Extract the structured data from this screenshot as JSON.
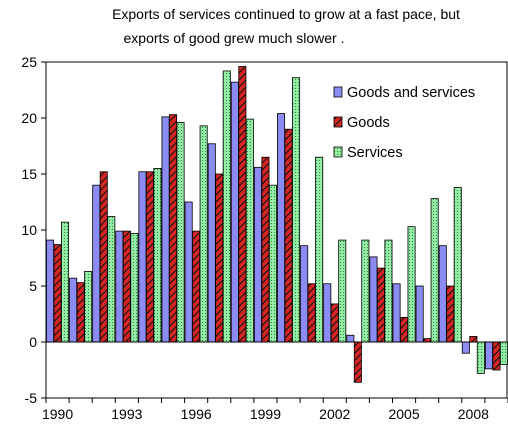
{
  "chart_data": {
    "type": "bar",
    "title_lines": [
      "Exports of services continued to grow at a fast pace, but",
      "exports of good grew much slower ."
    ],
    "xlabel": "",
    "ylabel": "",
    "ylim": [
      -5,
      25
    ],
    "yticks": [
      -5,
      0,
      5,
      10,
      15,
      20,
      25
    ],
    "categories": [
      1990,
      1991,
      1992,
      1993,
      1994,
      1995,
      1996,
      1997,
      1998,
      1999,
      2000,
      2001,
      2002,
      2003,
      2004,
      2005,
      2006,
      2007,
      2008,
      2009
    ],
    "xtick_labels": [
      "1990",
      "1993",
      "1996",
      "1999",
      "2002",
      "2005",
      "2008"
    ],
    "xtick_years": [
      1990,
      1993,
      1996,
      1999,
      2002,
      2005,
      2008
    ],
    "legend_position": "top-right",
    "grid": false,
    "series": [
      {
        "name": "Goods and services",
        "color": "#8b8bf2",
        "values": [
          9.1,
          5.7,
          14.0,
          9.9,
          15.2,
          20.1,
          12.5,
          17.7,
          23.2,
          15.6,
          20.4,
          8.6,
          5.2,
          0.6,
          7.6,
          5.2,
          5.0,
          8.6,
          -1.0,
          -2.4
        ]
      },
      {
        "name": "Goods",
        "color": "#d42525",
        "values": [
          8.7,
          5.3,
          15.2,
          9.9,
          15.2,
          20.3,
          9.9,
          15.0,
          24.6,
          16.5,
          19.0,
          5.2,
          3.4,
          -3.6,
          6.6,
          2.2,
          0.3,
          5.0,
          0.5,
          -2.5
        ]
      },
      {
        "name": "Services",
        "color": "#93eba5",
        "values": [
          10.7,
          6.3,
          11.2,
          9.7,
          15.5,
          19.6,
          19.3,
          24.2,
          19.9,
          14.0,
          23.6,
          16.5,
          9.1,
          9.1,
          9.1,
          10.3,
          12.8,
          13.8,
          -2.8,
          -2.0
        ]
      }
    ]
  }
}
